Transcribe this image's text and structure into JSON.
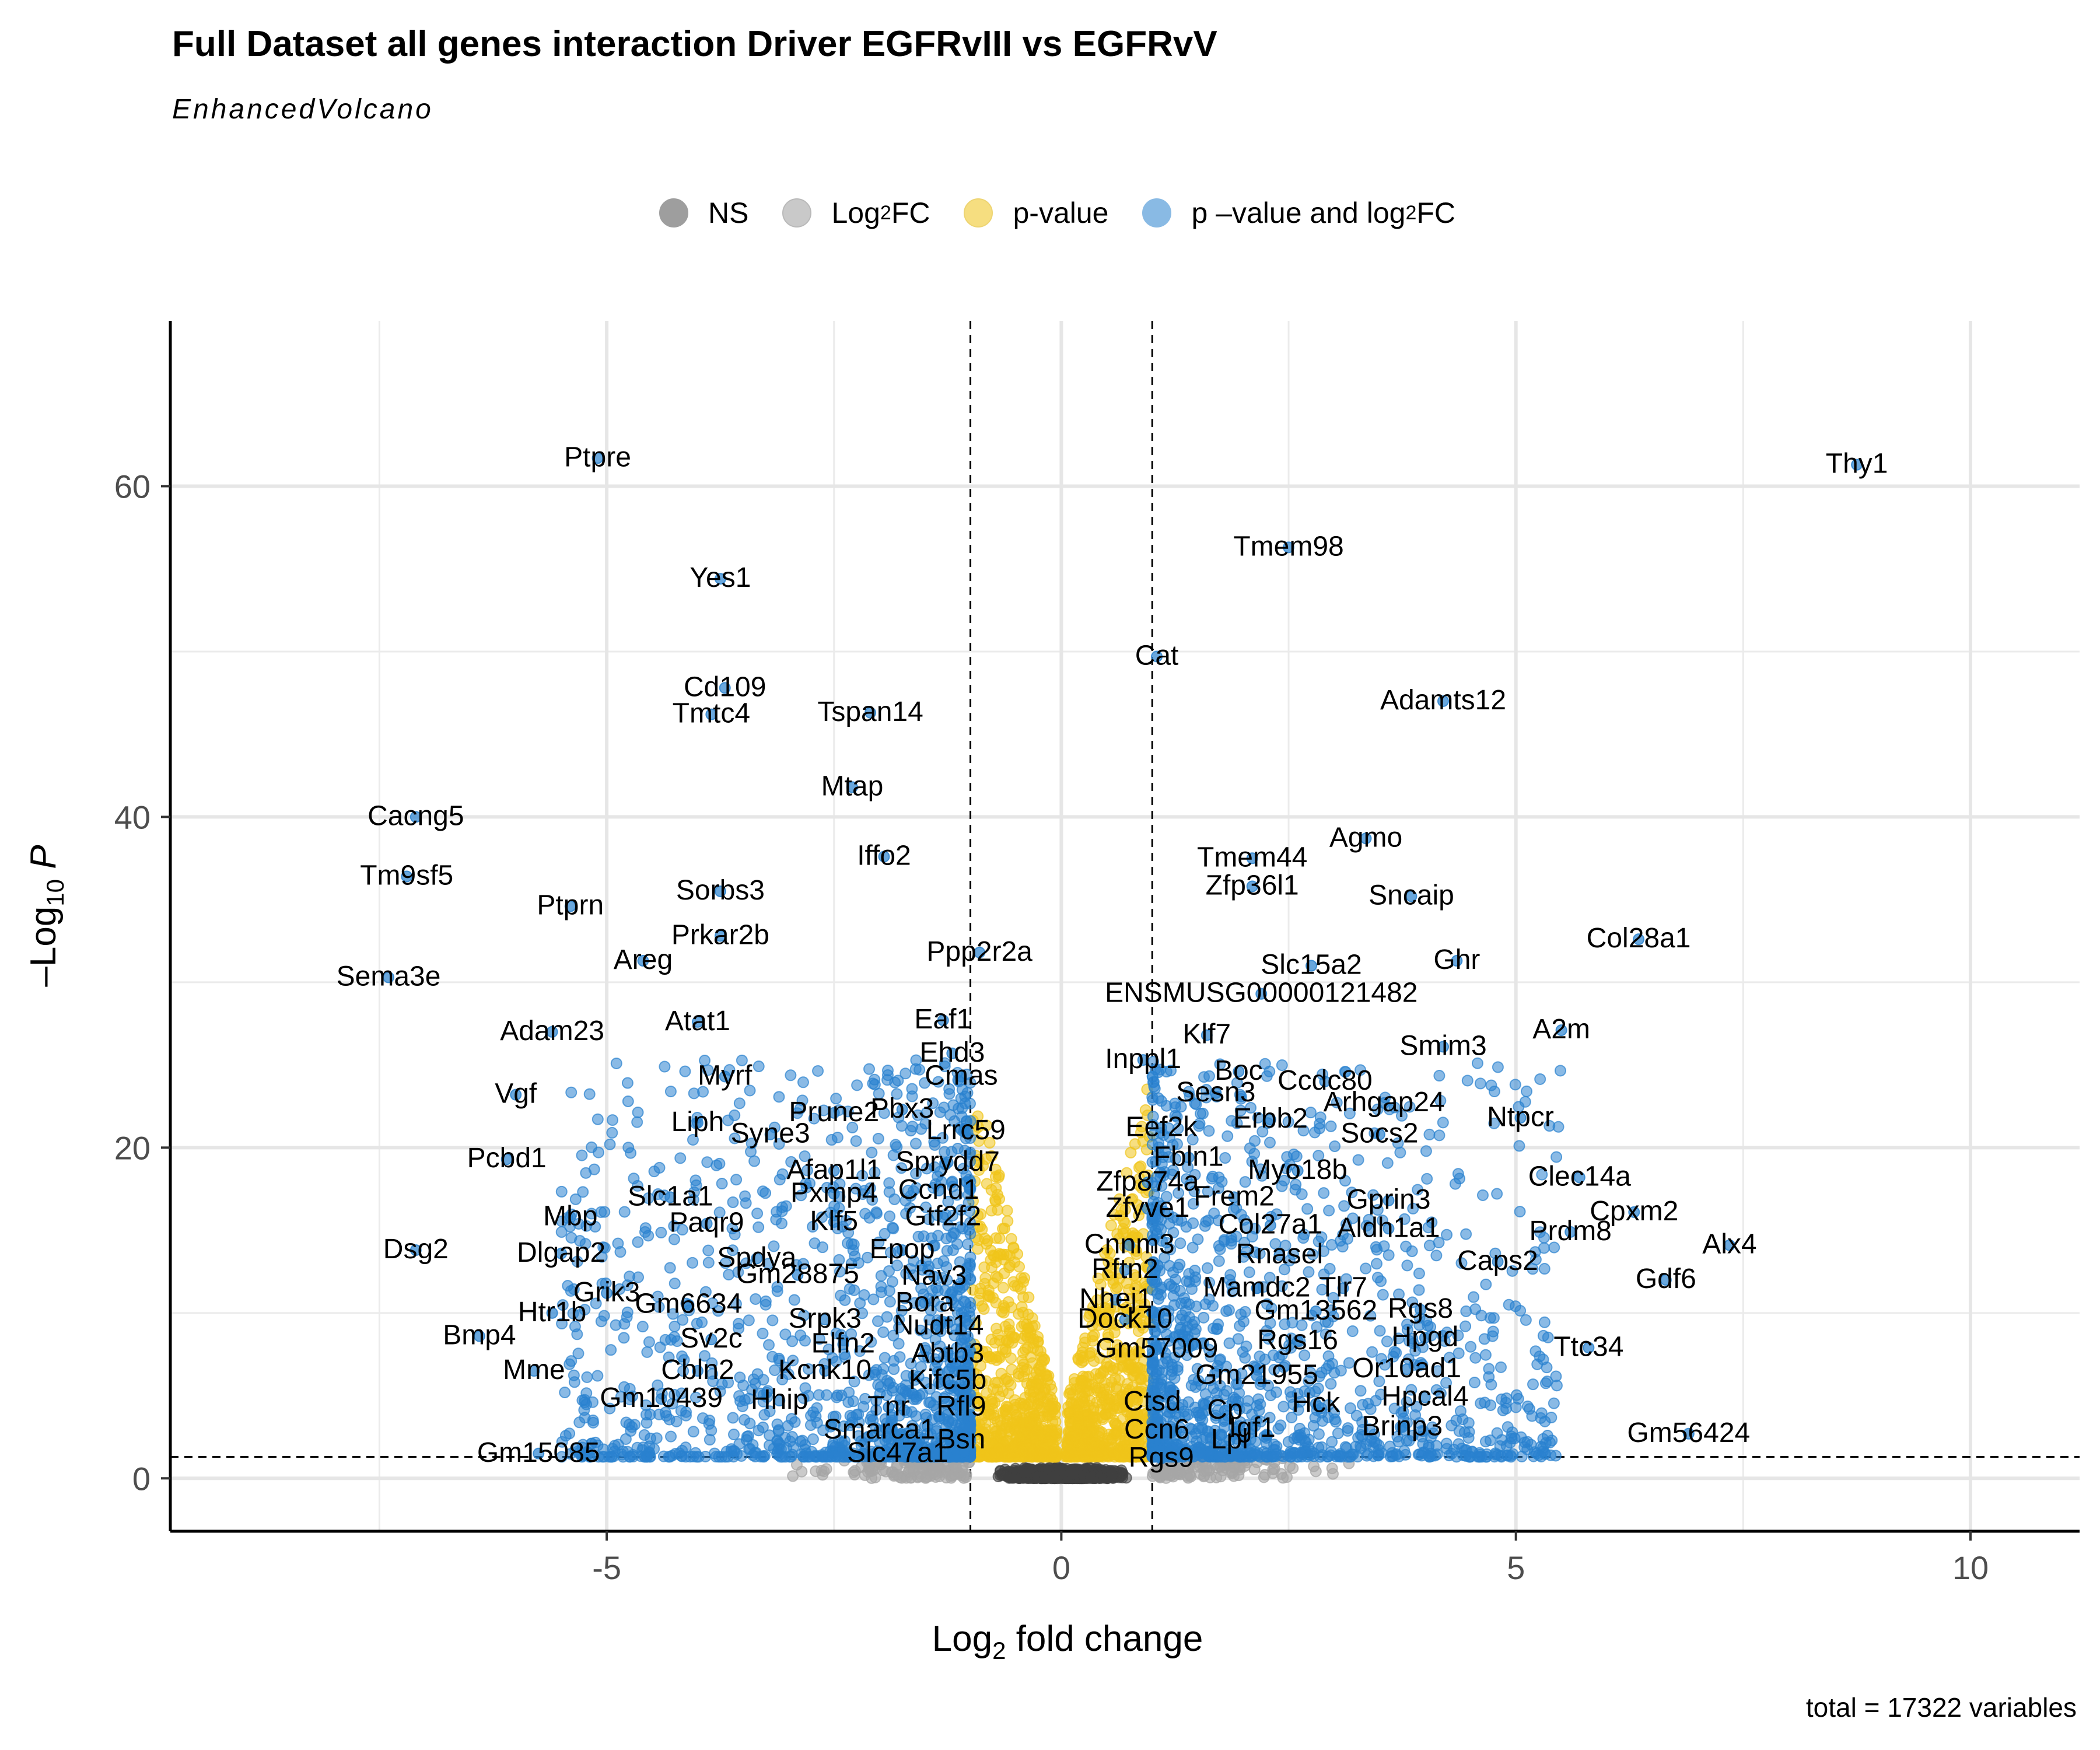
{
  "chart_data": {
    "type": "scatter",
    "title": "Full Dataset all genes interaction Driver EGFRvIII vs EGFRvV",
    "subtitle": "EnhancedVolcano",
    "xlabel": "Log",
    "xlabel_sub": "2",
    "xlabel_rest": " fold change",
    "ylabel": "–Log",
    "ylabel_sub": "10",
    "ylabel_rest": " P",
    "xlim": [
      -9.8,
      11.2
    ],
    "ylim": [
      -3.2,
      70
    ],
    "x_ticks": [
      -5,
      0,
      5,
      10
    ],
    "x_tick_labels": [
      "-5",
      "0",
      "5",
      "10"
    ],
    "y_ticks": [
      0,
      20,
      40,
      60
    ],
    "y_tick_labels": [
      "0",
      "20",
      "40",
      "60"
    ],
    "grid": true,
    "fc_cutoff": 1,
    "p_cutoff_log10": 1.3,
    "legend_position": "top",
    "legend": [
      {
        "label": "NS",
        "sub": "",
        "rest": "",
        "color": "#404040"
      },
      {
        "label": "Log",
        "sub": "2",
        "rest": " FC",
        "color": "#a6a6a6"
      },
      {
        "label": "p-value",
        "sub": "",
        "rest": "",
        "color": "#f0c419"
      },
      {
        "label": "p –value and log",
        "sub": "2",
        "rest": " FC",
        "color": "#2a82cf"
      }
    ],
    "caption": "total = 17322 variables",
    "labeled_points": [
      {
        "gene": "Thy1",
        "x": 8.75,
        "y": 61.3
      },
      {
        "gene": "Ptpre",
        "x": -5.1,
        "y": 61.7
      },
      {
        "gene": "Tmem98",
        "x": 2.5,
        "y": 56.3
      },
      {
        "gene": "Yes1",
        "x": -3.75,
        "y": 54.4
      },
      {
        "gene": "Cat",
        "x": 1.05,
        "y": 49.7
      },
      {
        "gene": "Adamts12",
        "x": 4.2,
        "y": 47.0
      },
      {
        "gene": "Cd109",
        "x": -3.7,
        "y": 47.8
      },
      {
        "gene": "Tmtc4",
        "x": -3.85,
        "y": 46.2
      },
      {
        "gene": "Tspan14",
        "x": -2.1,
        "y": 46.3
      },
      {
        "gene": "Mtap",
        "x": -2.3,
        "y": 41.8
      },
      {
        "gene": "Cacng5",
        "x": -7.1,
        "y": 40.0
      },
      {
        "gene": "Iffo2",
        "x": -1.95,
        "y": 37.6
      },
      {
        "gene": "Tmem44",
        "x": 2.1,
        "y": 37.5
      },
      {
        "gene": "Agmo",
        "x": 3.35,
        "y": 38.7
      },
      {
        "gene": "Tm9sf5",
        "x": -7.2,
        "y": 36.4
      },
      {
        "gene": "Sorbs3",
        "x": -3.75,
        "y": 35.5
      },
      {
        "gene": "Zfp36l1",
        "x": 2.1,
        "y": 35.8
      },
      {
        "gene": "Sncaip",
        "x": 3.85,
        "y": 35.2
      },
      {
        "gene": "Ptprn",
        "x": -5.4,
        "y": 34.6
      },
      {
        "gene": "Col28a1",
        "x": 6.35,
        "y": 32.6
      },
      {
        "gene": "Prkar2b",
        "x": -3.75,
        "y": 32.8
      },
      {
        "gene": "Areg",
        "x": -4.6,
        "y": 31.3
      },
      {
        "gene": "Ppp2r2a",
        "x": -0.9,
        "y": 31.8
      },
      {
        "gene": "Slc15a2",
        "x": 2.75,
        "y": 31.0
      },
      {
        "gene": "Ghr",
        "x": 4.35,
        "y": 31.3
      },
      {
        "gene": "Sema3e",
        "x": -7.4,
        "y": 30.3
      },
      {
        "gene": "ENSMUSG00000121482",
        "x": 2.2,
        "y": 29.3
      },
      {
        "gene": "Atat1",
        "x": -4.0,
        "y": 27.6
      },
      {
        "gene": "Eaf1",
        "x": -1.3,
        "y": 27.7
      },
      {
        "gene": "A2m",
        "x": 5.5,
        "y": 27.1
      },
      {
        "gene": "Klf7",
        "x": 1.6,
        "y": 26.8
      },
      {
        "gene": "Adam23",
        "x": -5.6,
        "y": 27.0
      },
      {
        "gene": "Smim3",
        "x": 4.2,
        "y": 26.1
      },
      {
        "gene": "Ehd3",
        "x": -1.2,
        "y": 25.7
      },
      {
        "gene": "Inppl1",
        "x": 0.9,
        "y": 25.3
      },
      {
        "gene": "Boc",
        "x": 1.95,
        "y": 24.6
      },
      {
        "gene": "Cmas",
        "x": -1.1,
        "y": 24.3
      },
      {
        "gene": "Myrf",
        "x": -3.7,
        "y": 24.3
      },
      {
        "gene": "Ccdc80",
        "x": 2.9,
        "y": 24.0
      },
      {
        "gene": "Vgf",
        "x": -6.0,
        "y": 23.2
      },
      {
        "gene": "Sesn3",
        "x": 1.7,
        "y": 23.3
      },
      {
        "gene": "Arhgap24",
        "x": 3.55,
        "y": 22.7
      },
      {
        "gene": "Pbx3",
        "x": -1.75,
        "y": 22.3
      },
      {
        "gene": "Prune2",
        "x": -2.5,
        "y": 22.1
      },
      {
        "gene": "Ntpcr",
        "x": 5.05,
        "y": 21.8
      },
      {
        "gene": "Erbb2",
        "x": 2.3,
        "y": 21.7
      },
      {
        "gene": "Eef2k",
        "x": 1.1,
        "y": 21.2
      },
      {
        "gene": "Lrrc59",
        "x": -1.05,
        "y": 21.0
      },
      {
        "gene": "Liph",
        "x": -4.0,
        "y": 21.5
      },
      {
        "gene": "Syne3",
        "x": -3.2,
        "y": 20.8
      },
      {
        "gene": "Socs2",
        "x": 3.5,
        "y": 20.8
      },
      {
        "gene": "Pcbd1",
        "x": -6.1,
        "y": 19.3
      },
      {
        "gene": "Fbln1",
        "x": 1.4,
        "y": 19.4
      },
      {
        "gene": "Sprydd7",
        "x": -1.25,
        "y": 19.1
      },
      {
        "gene": "Afap1l1",
        "x": -2.5,
        "y": 18.6
      },
      {
        "gene": "Myo18b",
        "x": 2.6,
        "y": 18.6
      },
      {
        "gene": "Clec14a",
        "x": 5.7,
        "y": 18.2
      },
      {
        "gene": "Zfp874a",
        "x": 0.95,
        "y": 17.9
      },
      {
        "gene": "Ccnd1",
        "x": -1.35,
        "y": 17.4
      },
      {
        "gene": "Pxmp4",
        "x": -2.5,
        "y": 17.2
      },
      {
        "gene": "Slc1a1",
        "x": -4.3,
        "y": 17.0
      },
      {
        "gene": "Frem2",
        "x": 1.9,
        "y": 17.0
      },
      {
        "gene": "Gprin3",
        "x": 3.6,
        "y": 16.8
      },
      {
        "gene": "Cpxm2",
        "x": 6.3,
        "y": 16.1
      },
      {
        "gene": "Zfyve1",
        "x": 0.95,
        "y": 16.3
      },
      {
        "gene": "Gtf2f2",
        "x": -1.3,
        "y": 15.8
      },
      {
        "gene": "Mbp",
        "x": -5.4,
        "y": 15.8
      },
      {
        "gene": "Klf5",
        "x": -2.5,
        "y": 15.5
      },
      {
        "gene": "Paqr9",
        "x": -3.9,
        "y": 15.4
      },
      {
        "gene": "Col27a1",
        "x": 2.3,
        "y": 15.3
      },
      {
        "gene": "Aldh1a1",
        "x": 3.6,
        "y": 15.1
      },
      {
        "gene": "Prdm8",
        "x": 5.6,
        "y": 14.9
      },
      {
        "gene": "Alx4",
        "x": 7.35,
        "y": 14.1
      },
      {
        "gene": "Cnnm3",
        "x": 0.75,
        "y": 14.1
      },
      {
        "gene": "Dsg2",
        "x": -7.1,
        "y": 13.8
      },
      {
        "gene": "Dlgap2",
        "x": -5.5,
        "y": 13.6
      },
      {
        "gene": "Epop",
        "x": -1.75,
        "y": 13.8
      },
      {
        "gene": "Rnasel",
        "x": 2.4,
        "y": 13.5
      },
      {
        "gene": "Spdya",
        "x": -3.35,
        "y": 13.3
      },
      {
        "gene": "Caps2",
        "x": 4.8,
        "y": 13.1
      },
      {
        "gene": "Rftn2",
        "x": 0.7,
        "y": 12.6
      },
      {
        "gene": "Gm28875",
        "x": -2.9,
        "y": 12.3
      },
      {
        "gene": "Gdf6",
        "x": 6.65,
        "y": 12.0
      },
      {
        "gene": "Nav3",
        "x": -1.4,
        "y": 12.2
      },
      {
        "gene": "Mamdc2",
        "x": 2.15,
        "y": 11.5
      },
      {
        "gene": "Tlr7",
        "x": 3.1,
        "y": 11.5
      },
      {
        "gene": "Grik3",
        "x": -5.0,
        "y": 11.2
      },
      {
        "gene": "Nhej1",
        "x": 0.6,
        "y": 10.8
      },
      {
        "gene": "Bora",
        "x": -1.5,
        "y": 10.6
      },
      {
        "gene": "Gm6634",
        "x": -4.1,
        "y": 10.5
      },
      {
        "gene": "Gm13562",
        "x": 2.8,
        "y": 10.1
      },
      {
        "gene": "Rgs8",
        "x": 3.95,
        "y": 10.2
      },
      {
        "gene": "Htr1b",
        "x": -5.6,
        "y": 10.0
      },
      {
        "gene": "Srpk3",
        "x": -2.6,
        "y": 9.6
      },
      {
        "gene": "Dock10",
        "x": 0.7,
        "y": 9.6
      },
      {
        "gene": "Nudt14",
        "x": -1.35,
        "y": 9.2
      },
      {
        "gene": "Bmp4",
        "x": -6.4,
        "y": 8.6
      },
      {
        "gene": "Hpgd",
        "x": 4.0,
        "y": 8.5
      },
      {
        "gene": "Sv2c",
        "x": -3.85,
        "y": 8.4
      },
      {
        "gene": "Rgs16",
        "x": 2.6,
        "y": 8.3
      },
      {
        "gene": "Elfn2",
        "x": -2.4,
        "y": 8.1
      },
      {
        "gene": "Ttc34",
        "x": 5.8,
        "y": 7.9
      },
      {
        "gene": "Gm57009",
        "x": 1.05,
        "y": 7.8
      },
      {
        "gene": "Abtb3",
        "x": -1.25,
        "y": 7.5
      },
      {
        "gene": "Mme",
        "x": -5.8,
        "y": 6.5
      },
      {
        "gene": "Or10ad1",
        "x": 3.8,
        "y": 6.6
      },
      {
        "gene": "Cbln2",
        "x": -4.0,
        "y": 6.5
      },
      {
        "gene": "Kcnk10",
        "x": -2.6,
        "y": 6.5
      },
      {
        "gene": "Gm21955",
        "x": 2.15,
        "y": 6.2
      },
      {
        "gene": "Kifc5b",
        "x": -1.25,
        "y": 5.9
      },
      {
        "gene": "Gm10439",
        "x": -4.4,
        "y": 4.8
      },
      {
        "gene": "Hhip",
        "x": -3.1,
        "y": 4.7
      },
      {
        "gene": "Hpcal4",
        "x": 4.0,
        "y": 4.9
      },
      {
        "gene": "Ctsd",
        "x": 1.0,
        "y": 4.6
      },
      {
        "gene": "Hck",
        "x": 2.8,
        "y": 4.5
      },
      {
        "gene": "Tnr",
        "x": -1.9,
        "y": 4.3
      },
      {
        "gene": "Rfl9",
        "x": -1.1,
        "y": 4.3
      },
      {
        "gene": "Cp",
        "x": 1.8,
        "y": 4.1
      },
      {
        "gene": "Brinp3",
        "x": 3.75,
        "y": 3.1
      },
      {
        "gene": "Igf1",
        "x": 2.1,
        "y": 3.0
      },
      {
        "gene": "Smarca1",
        "x": -2.0,
        "y": 2.9
      },
      {
        "gene": "Ccn6",
        "x": 1.05,
        "y": 2.9
      },
      {
        "gene": "Gm56424",
        "x": 6.9,
        "y": 2.7
      },
      {
        "gene": "Bsn",
        "x": -1.1,
        "y": 2.3
      },
      {
        "gene": "Lpl",
        "x": 1.85,
        "y": 2.3
      },
      {
        "gene": "Gm15085",
        "x": -5.75,
        "y": 1.5
      },
      {
        "gene": "Slc47a1",
        "x": -1.8,
        "y": 1.5
      },
      {
        "gene": "Rgs9",
        "x": 1.1,
        "y": 1.2
      }
    ]
  }
}
